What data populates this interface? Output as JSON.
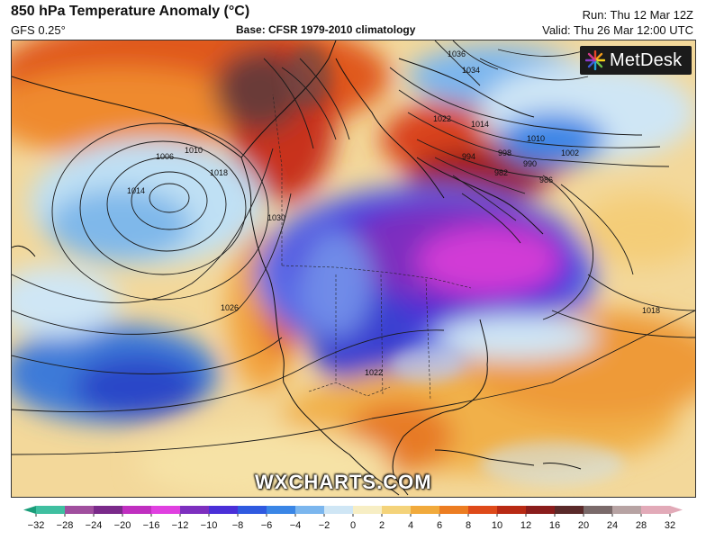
{
  "header": {
    "title": "850 hPa Temperature Anomaly (°C)",
    "model": "GFS 0.25°",
    "base": "Base: CFSR 1979-2010 climatology",
    "run": "Run: Thu 12 Mar 12Z",
    "valid": "Valid: Thu 26 Mar 12:00 UTC"
  },
  "logo": {
    "text": "MetDesk",
    "icon": "metdesk-starburst-icon"
  },
  "watermark": "WXCHARTS.COM",
  "isobar_labels": [
    "1006",
    "1010",
    "1014",
    "1018",
    "1022",
    "1026",
    "1030",
    "1034",
    "1036",
    "994",
    "998",
    "990",
    "986",
    "982",
    "1002",
    "1014",
    "1010",
    "1018",
    "1022"
  ],
  "colorbar": {
    "ticks": [
      "−32",
      "−28",
      "−24",
      "−20",
      "−16",
      "−12",
      "−10",
      "−8",
      "−6",
      "−4",
      "−2",
      "0",
      "2",
      "4",
      "6",
      "8",
      "10",
      "12",
      "16",
      "20",
      "24",
      "28",
      "32"
    ],
    "colors": [
      "#1a9e7a",
      "#3fbfa0",
      "#a04f9e",
      "#7a2a8a",
      "#c02fc0",
      "#e040e0",
      "#7d2fbf",
      "#4a2fd8",
      "#2f5ae0",
      "#3a86e6",
      "#7bb6ee",
      "#cfe6f5",
      "#f7eec4",
      "#f4d37a",
      "#f1aa3c",
      "#ec7d22",
      "#de4a1a",
      "#b82a14",
      "#8a1d1c",
      "#5a2a2a",
      "#7a6a6a",
      "#b7a3a3",
      "#e2aab8"
    ],
    "unit": "°C"
  }
}
